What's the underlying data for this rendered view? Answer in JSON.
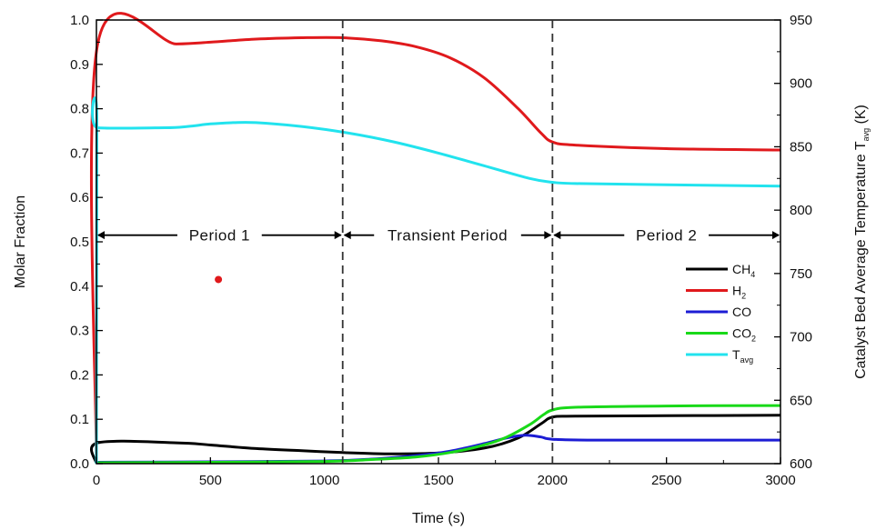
{
  "chart_data": {
    "type": "line",
    "xlabel": "Time (s)",
    "ylabel": "Molar Fraction",
    "y2label": {
      "main": "Catalyst Bed Average Temperature T",
      "sub": "avg",
      "suffix": " (K)"
    },
    "xlim": [
      0,
      3000
    ],
    "ylim": [
      0,
      1.0
    ],
    "y2lim": [
      600,
      950
    ],
    "xticks": [
      "0",
      "500",
      "1000",
      "1500",
      "2000",
      "2500",
      "3000"
    ],
    "yticks": [
      "0.0",
      "0.1",
      "0.2",
      "0.3",
      "0.4",
      "0.5",
      "0.6",
      "0.7",
      "0.8",
      "0.9",
      "1.0"
    ],
    "y2ticks": [
      "600",
      "650",
      "700",
      "750",
      "800",
      "850",
      "900",
      "950"
    ],
    "grid": false,
    "legend_position": "right",
    "series": [
      {
        "name": "CH4",
        "label": "CH",
        "label_sub": "4",
        "color": "#000000",
        "axis": "left",
        "x": [
          0,
          5,
          350,
          500,
          700,
          900,
          1080,
          1300,
          1500,
          1700,
          1850,
          1950,
          2000,
          2100,
          2500,
          3000
        ],
        "y": [
          0,
          0.047,
          0.047,
          0.042,
          0.034,
          0.029,
          0.025,
          0.022,
          0.024,
          0.035,
          0.058,
          0.09,
          0.105,
          0.107,
          0.108,
          0.109
        ]
      },
      {
        "name": "H2",
        "label": "H",
        "label_sub": "2",
        "color": "#e0191c",
        "axis": "left",
        "x": [
          0,
          5,
          350,
          500,
          700,
          900,
          1080,
          1250,
          1400,
          1550,
          1700,
          1850,
          1950,
          2000,
          2100,
          2500,
          3000
        ],
        "y": [
          0,
          0.945,
          0.946,
          0.95,
          0.957,
          0.96,
          0.96,
          0.953,
          0.94,
          0.915,
          0.87,
          0.8,
          0.745,
          0.725,
          0.718,
          0.71,
          0.707
        ]
      },
      {
        "name": "CO",
        "label": "CO",
        "label_sub": "",
        "color": "#1c1cd4",
        "axis": "left",
        "x": [
          0,
          500,
          1000,
          1200,
          1400,
          1550,
          1700,
          1800,
          1880,
          1950,
          2000,
          2200,
          3000
        ],
        "y": [
          0.003,
          0.004,
          0.006,
          0.01,
          0.018,
          0.028,
          0.045,
          0.058,
          0.064,
          0.06,
          0.055,
          0.053,
          0.053
        ]
      },
      {
        "name": "CO2",
        "label": "CO",
        "label_sub": "2",
        "color": "#19d919",
        "axis": "left",
        "x": [
          0,
          500,
          1000,
          1200,
          1400,
          1550,
          1700,
          1800,
          1900,
          1960,
          2000,
          2100,
          2500,
          3000
        ],
        "y": [
          0.002,
          0.003,
          0.005,
          0.009,
          0.015,
          0.025,
          0.042,
          0.06,
          0.088,
          0.11,
          0.121,
          0.127,
          0.13,
          0.131
        ]
      },
      {
        "name": "Tavg",
        "label": "T",
        "label_sub": "avg",
        "color": "#22e3ee",
        "axis": "right",
        "x": [
          0,
          2,
          5,
          300,
          400,
          500,
          600,
          700,
          900,
          1100,
          1300,
          1500,
          1700,
          1900,
          2000,
          2100,
          2500,
          3000
        ],
        "y": [
          600,
          870,
          865,
          865,
          866,
          868,
          869,
          869,
          866,
          861,
          854,
          845,
          835,
          825,
          822,
          821,
          820,
          819
        ]
      }
    ],
    "annotations": {
      "dividers": [
        1080,
        2000
      ],
      "periods": [
        {
          "label": "Period 1",
          "x_start": 0,
          "x_end": 1080,
          "y": 0.515
        },
        {
          "label": "Transient Period",
          "x_start": 1080,
          "x_end": 2000,
          "y": 0.515
        },
        {
          "label": "Period 2",
          "x_start": 2000,
          "x_end": 3000,
          "y": 0.515
        }
      ],
      "marker": {
        "x": 535,
        "y": 0.415,
        "color": "#e0191c"
      }
    }
  }
}
